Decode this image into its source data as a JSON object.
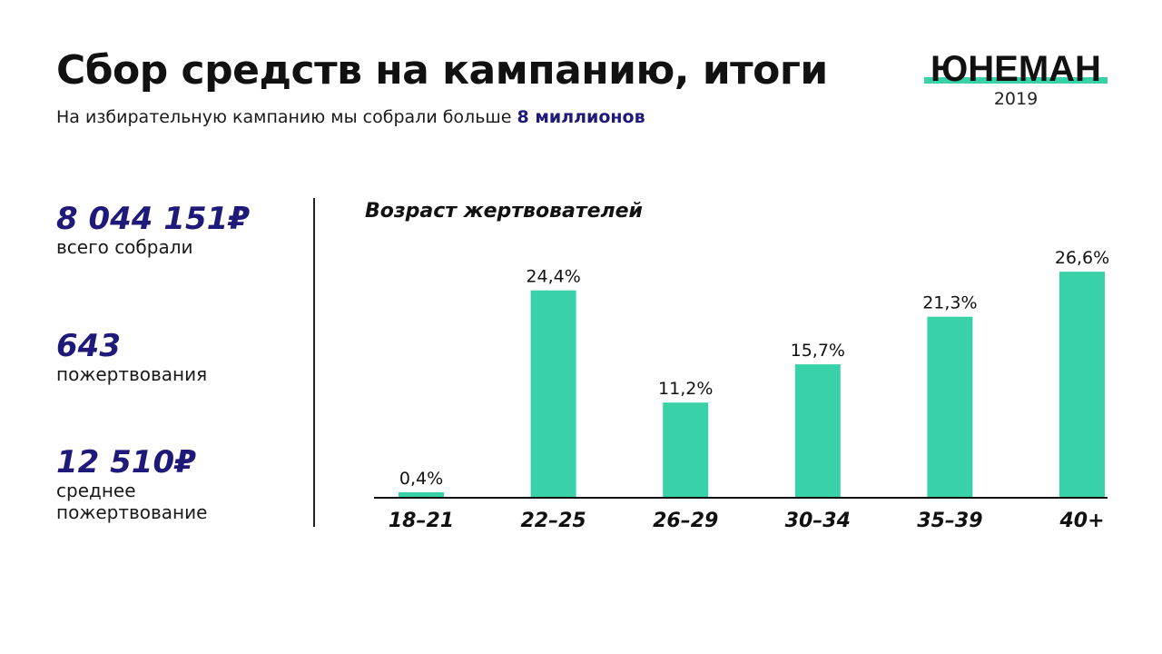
{
  "header": {
    "title": "Сбор средств на кампанию, итоги",
    "subtitle_prefix": "На избирательную кампанию мы собрали больше ",
    "subtitle_highlight": "8 миллионов"
  },
  "logo": {
    "name": "ЮНЕМАН",
    "year": "2019",
    "accent_color": "#38d1a8"
  },
  "stats": [
    {
      "value": "8 044 151₽",
      "label": "всего собрали"
    },
    {
      "value": "643",
      "label": "пожертвования"
    },
    {
      "value": "12 510₽",
      "label": "среднее пожертвование"
    }
  ],
  "colors": {
    "bar": "#38d1a8",
    "stat_value": "#1f1a7a",
    "text": "#111111"
  },
  "chart_data": {
    "type": "bar",
    "title": "Возраст жертвователей",
    "categories": [
      "18–21",
      "22–25",
      "26–29",
      "30–34",
      "35–39",
      "40+"
    ],
    "values": [
      0.4,
      24.4,
      11.2,
      15.7,
      21.3,
      26.6
    ],
    "value_labels": [
      "0,4%",
      "24,4%",
      "11,2%",
      "15,7%",
      "21,3%",
      "26,6%"
    ],
    "ylim": [
      0,
      28
    ],
    "grid": false,
    "legend": "none"
  }
}
